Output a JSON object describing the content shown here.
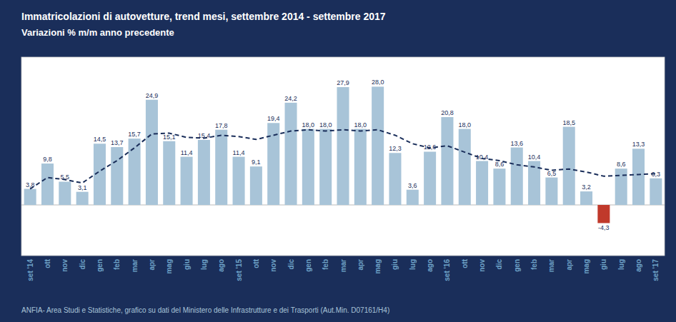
{
  "chart_data": {
    "type": "bar",
    "title": "Immatricolazioni  di autovetture,  trend mesi,  settembre  2014 - settembre  2017",
    "subtitle": "Variazioni  % m/m anno precedente",
    "annotations": [
      "ANFIA- Area Studi e Statistiche, grafico  su dati del Ministero delle  Infrastrutture e dei Trasporti (Aut.Min. D07161/H4)"
    ],
    "categories": [
      "set '14",
      "ott",
      "nov",
      "dic",
      "gen",
      "feb",
      "mar",
      "apr",
      "mag",
      "giu",
      "lug",
      "ago",
      "set '15",
      "ott",
      "nov",
      "dic",
      "gen",
      "feb",
      "mar",
      "apr",
      "mag",
      "giu",
      "lug",
      "ago",
      "set '16",
      "ott",
      "nov",
      "dic",
      "gen",
      "feb",
      "mar",
      "apr",
      "mag",
      "giu",
      "lug",
      "ago",
      "set '17"
    ],
    "series": [
      {
        "type": "bar",
        "values": [
          3.8,
          9.8,
          5.5,
          3.1,
          14.5,
          13.7,
          15.7,
          24.9,
          15.1,
          11.4,
          15.4,
          17.8,
          11.4,
          9.1,
          19.4,
          24.2,
          18.0,
          18.0,
          27.9,
          18.0,
          28.0,
          12.3,
          3.6,
          12.6,
          20.8,
          18.0,
          10.4,
          8.6,
          13.6,
          10.4,
          6.5,
          18.5,
          3.2,
          -4.3,
          8.6,
          13.3,
          6.3
        ],
        "value_labels": [
          "3,8",
          "9,8",
          "5,5",
          "3,1",
          "14,5",
          "13,7",
          "15,7",
          "24,9",
          "15,1",
          "11,4",
          "15,4",
          "17,8",
          "11,4",
          "9,1",
          "19,4",
          "24,2",
          "18,0",
          "18,0",
          "27,9",
          "18,0",
          "28,0",
          "12,3",
          "3,6",
          "12,6",
          "20,8",
          "18,0",
          "10,4",
          "8,6",
          "13,6",
          "10,4",
          "6,5",
          "18,5",
          "3,2",
          "-4,3",
          "8,6",
          "13,3",
          "6,3"
        ],
        "colors": [
          "#a8c4d8",
          "#a8c4d8",
          "#a8c4d8",
          "#a8c4d8",
          "#a8c4d8",
          "#a8c4d8",
          "#a8c4d8",
          "#a8c4d8",
          "#a8c4d8",
          "#a8c4d8",
          "#a8c4d8",
          "#a8c4d8",
          "#a8c4d8",
          "#a8c4d8",
          "#a8c4d8",
          "#a8c4d8",
          "#a8c4d8",
          "#a8c4d8",
          "#a8c4d8",
          "#a8c4d8",
          "#a8c4d8",
          "#a8c4d8",
          "#a8c4d8",
          "#a8c4d8",
          "#a8c4d8",
          "#a8c4d8",
          "#a8c4d8",
          "#a8c4d8",
          "#a8c4d8",
          "#a8c4d8",
          "#a8c4d8",
          "#a8c4d8",
          "#a8c4d8",
          "#c0392b",
          "#a8c4d8",
          "#a8c4d8",
          "#a8c4d8"
        ]
      },
      {
        "type": "line",
        "values": [
          3.8,
          6.5,
          6.0,
          5.2,
          8.0,
          10.5,
          13.5,
          16.8,
          17.0,
          16.0,
          15.8,
          16.5,
          16.2,
          15.5,
          16.5,
          17.5,
          17.8,
          17.5,
          17.8,
          17.5,
          17.8,
          16.5,
          14.5,
          13.5,
          14.0,
          12.5,
          11.0,
          10.5,
          9.5,
          9.0,
          8.2,
          8.5,
          7.8,
          6.8,
          7.0,
          7.2,
          7.4
        ],
        "color": "#1a2e5a",
        "line_style": "dashed"
      }
    ],
    "ylim": [
      -12,
      35
    ],
    "data_labels": true,
    "tick_labels": "x",
    "grid": false
  }
}
